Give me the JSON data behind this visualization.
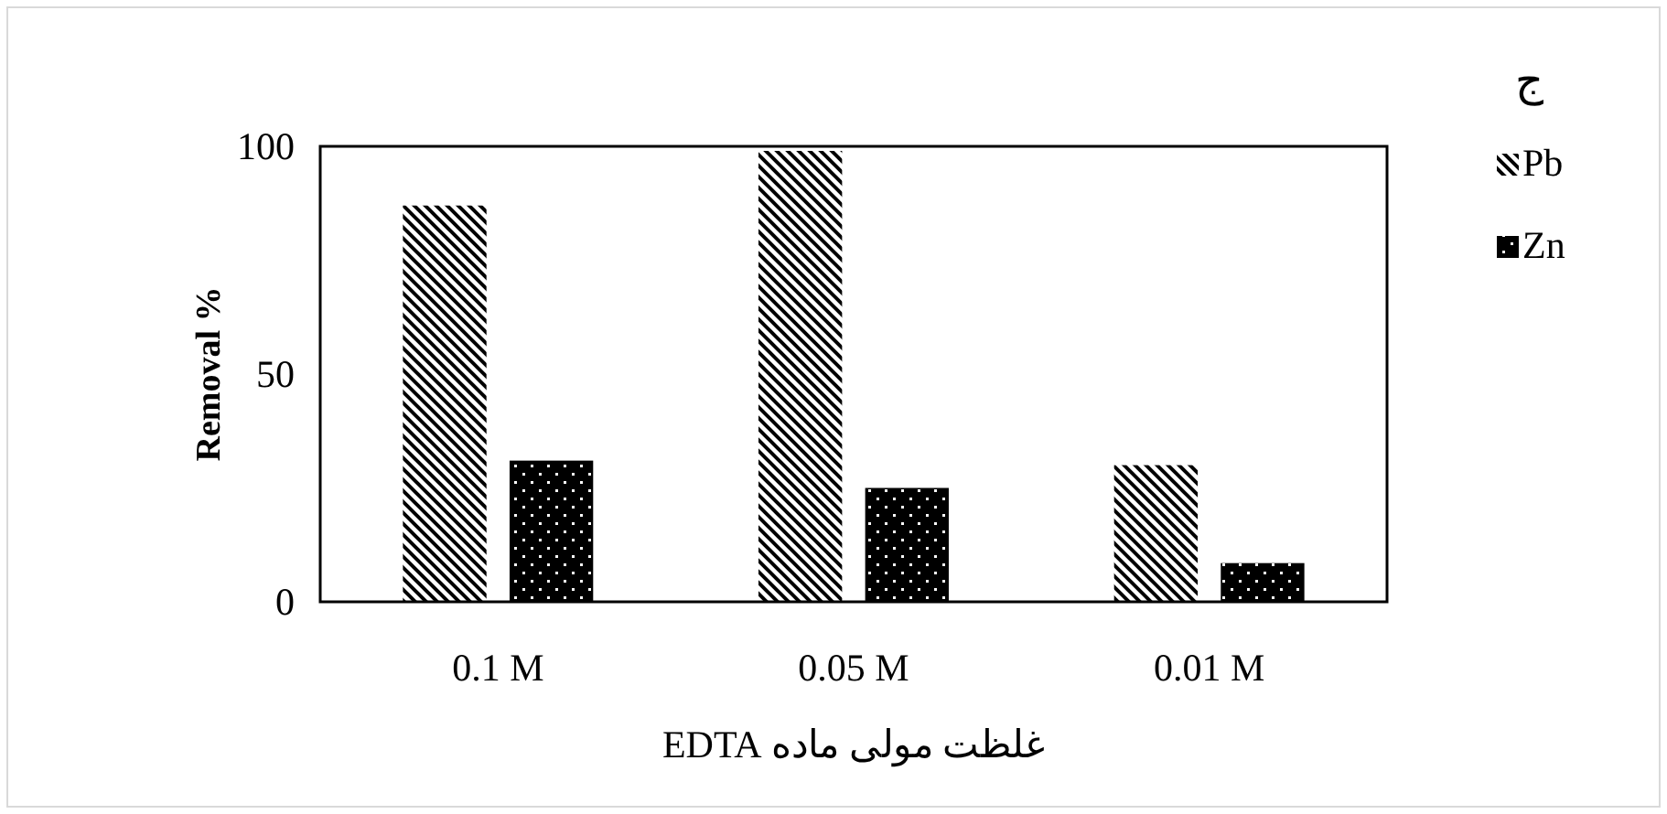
{
  "chart_data": {
    "type": "bar",
    "xlabel": "غلظت مولی ماده EDTA",
    "ylabel": "Removal %",
    "legend_title": "ج",
    "categories": [
      "0.1 M",
      "0.05 M",
      "0.01 M"
    ],
    "series": [
      {
        "name": "Pb",
        "color": "#000000",
        "values": [
          87,
          99,
          30
        ]
      },
      {
        "name": "Zn",
        "color": "#000000",
        "values": [
          31,
          25,
          8.5
        ]
      }
    ],
    "ylim": [
      0,
      100
    ],
    "yticks": [
      0,
      50,
      100
    ],
    "grid": false,
    "legend": "top right"
  }
}
